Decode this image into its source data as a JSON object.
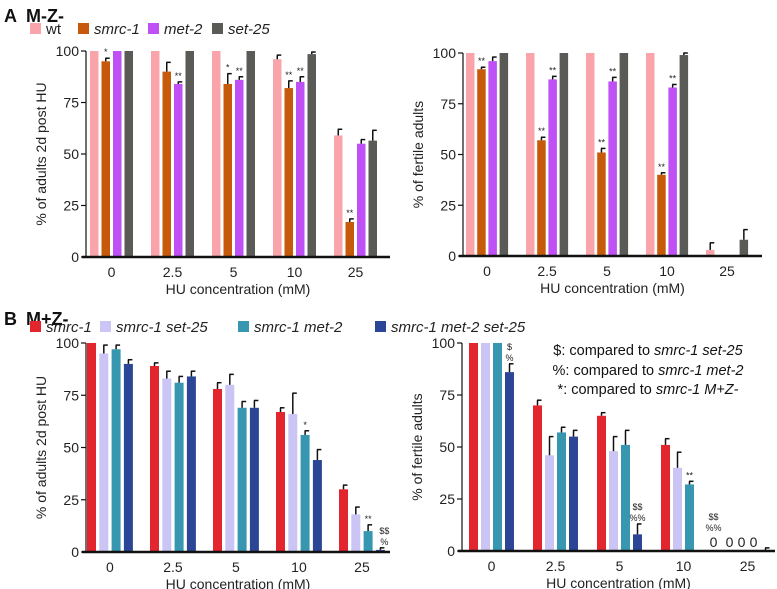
{
  "panels": [
    {
      "letter": "A",
      "title": "M-Z-"
    },
    {
      "letter": "B",
      "title": "M+Z-"
    }
  ],
  "legends": [
    [
      {
        "label": "wt",
        "color": "#f9a4aa",
        "italic": false
      },
      {
        "label": "smrc-1",
        "color": "#c65a0a",
        "italic": true
      },
      {
        "label": "met-2",
        "color": "#bf50f6",
        "italic": true
      },
      {
        "label": "set-25",
        "color": "#5a5b56",
        "italic": true
      }
    ],
    [
      {
        "label": "smrc-1",
        "color": "#e3252d",
        "italic": true
      },
      {
        "label": "smrc-1 set-25",
        "color": "#cac5f4",
        "italic": true
      },
      {
        "label": "smrc-1 met-2",
        "color": "#3797b0",
        "italic": true
      },
      {
        "label": "smrc-1 met-2 set-25",
        "color": "#2b4696",
        "italic": true
      }
    ]
  ],
  "notes": [
    {
      "prefix": "$: compared to ",
      "italic": "smrc-1 set-25"
    },
    {
      "prefix": "%: compared to ",
      "italic": "smrc-1 met-2"
    },
    {
      "prefix": "*: compared to ",
      "italic": "smrc-1 M+Z-"
    }
  ],
  "chart_data": [
    {
      "type": "bar",
      "panel": "A",
      "ylabel": "% of adults 2d post HU",
      "xlabel": "HU concentration (mM)",
      "ylim": [
        0,
        100
      ],
      "yticks": [
        "0",
        "25",
        "50",
        "75",
        "100"
      ],
      "categories": [
        "0",
        "2.5",
        "5",
        "10",
        "25"
      ],
      "legend": 0,
      "series": [
        {
          "name": "wt",
          "values": [
            100,
            100,
            100,
            96,
            59
          ],
          "errors": [
            0,
            0,
            0,
            2,
            3
          ],
          "sig": [
            "",
            "",
            "",
            "",
            ""
          ]
        },
        {
          "name": "smrc-1",
          "values": [
            95,
            90,
            84,
            82,
            17
          ],
          "errors": [
            1.5,
            4.5,
            5,
            3.5,
            1.5
          ],
          "sig": [
            "*",
            "",
            "*",
            "**",
            "**"
          ]
        },
        {
          "name": "met-2",
          "values": [
            100,
            84,
            86,
            85,
            55
          ],
          "errors": [
            0,
            1,
            1.5,
            2.5,
            2
          ],
          "sig": [
            "",
            "**",
            "**",
            "**",
            ""
          ]
        },
        {
          "name": "set-25",
          "values": [
            100,
            100,
            100,
            98.5,
            56.5
          ],
          "errors": [
            0,
            0,
            0,
            1,
            5
          ],
          "sig": [
            "",
            "",
            "",
            "",
            ""
          ]
        }
      ]
    },
    {
      "type": "bar",
      "panel": "A",
      "ylabel": "% of fertile adults",
      "xlabel": "HU concentration (mM)",
      "ylim": [
        0,
        100
      ],
      "yticks": [
        "0",
        "25",
        "50",
        "75",
        "100"
      ],
      "categories": [
        "0",
        "2.5",
        "5",
        "10",
        "25"
      ],
      "legend": 0,
      "series": [
        {
          "name": "wt",
          "values": [
            100,
            100,
            100,
            100,
            3
          ],
          "errors": [
            0,
            0,
            0,
            0,
            3.5
          ],
          "sig": [
            "",
            "",
            "",
            "",
            ""
          ]
        },
        {
          "name": "smrc-1",
          "values": [
            92,
            57,
            51,
            40,
            0
          ],
          "errors": [
            1,
            1.5,
            2,
            1,
            0
          ],
          "sig": [
            "**",
            "**",
            "**",
            "**",
            ""
          ]
        },
        {
          "name": "met-2",
          "values": [
            96,
            87,
            86,
            83,
            0
          ],
          "errors": [
            2,
            1.5,
            2,
            1.5,
            0
          ],
          "sig": [
            "",
            "**",
            "**",
            "**",
            ""
          ]
        },
        {
          "name": "set-25",
          "values": [
            100,
            100,
            100,
            99,
            8
          ],
          "errors": [
            0,
            0,
            0,
            1,
            5
          ],
          "sig": [
            "",
            "",
            "",
            "",
            ""
          ]
        }
      ]
    },
    {
      "type": "bar",
      "panel": "B",
      "ylabel": "% of adults 2d post HU",
      "xlabel": "HU concentration (mM)",
      "ylim": [
        0,
        100
      ],
      "yticks": [
        "0",
        "25",
        "50",
        "75",
        "100"
      ],
      "categories": [
        "0",
        "2.5",
        "5",
        "10",
        "25"
      ],
      "legend": 1,
      "series": [
        {
          "name": "smrc-1",
          "values": [
            100,
            89,
            78,
            67,
            30
          ],
          "errors": [
            0,
            1.5,
            3,
            2,
            2
          ],
          "sig": [
            "",
            "",
            "",
            "",
            ""
          ]
        },
        {
          "name": "smrc-1 set-25",
          "values": [
            95,
            83,
            80,
            66,
            18
          ],
          "errors": [
            4,
            3.5,
            5,
            10,
            3.5
          ],
          "sig": [
            "",
            "",
            "",
            "",
            ""
          ]
        },
        {
          "name": "smrc-1 met-2",
          "values": [
            97,
            81,
            69,
            56,
            10
          ],
          "errors": [
            2,
            3,
            3,
            2,
            3
          ],
          "sig": [
            "",
            "",
            "",
            "*",
            "**"
          ]
        },
        {
          "name": "smrc-1 met-2 set-25",
          "values": [
            90,
            84,
            69,
            44,
            1
          ],
          "errors": [
            2,
            2.5,
            3.5,
            5,
            1
          ],
          "sig": [
            "",
            "",
            "",
            "",
            "$$ %"
          ]
        }
      ]
    },
    {
      "type": "bar",
      "panel": "B",
      "ylabel": "% of fertile adults",
      "xlabel": "HU concentration (mM)",
      "ylim": [
        0,
        100
      ],
      "yticks": [
        "0",
        "25",
        "50",
        "75",
        "100"
      ],
      "categories": [
        "0",
        "2.5",
        "5",
        "10",
        "25"
      ],
      "legend": 1,
      "series": [
        {
          "name": "smrc-1",
          "values": [
            100,
            70,
            65,
            51,
            0
          ],
          "errors": [
            0,
            2.5,
            1.5,
            3,
            0
          ],
          "sig": [
            "",
            "",
            "",
            "",
            "0"
          ]
        },
        {
          "name": "smrc-1 set-25",
          "values": [
            100,
            46,
            48,
            40,
            0
          ],
          "errors": [
            0,
            9,
            7,
            7.5,
            0
          ],
          "sig": [
            "",
            "",
            "",
            "",
            "0"
          ]
        },
        {
          "name": "smrc-1 met-2",
          "values": [
            100,
            57,
            51,
            32,
            0
          ],
          "errors": [
            0,
            2.5,
            7,
            1.5,
            0
          ],
          "sig": [
            "",
            "",
            "",
            "**",
            "0"
          ]
        },
        {
          "name": "smrc-1 met-2 set-25",
          "values": [
            86,
            55,
            8,
            0,
            0.5
          ],
          "errors": [
            4,
            3,
            5,
            0,
            1
          ],
          "sig": [
            "$ %",
            "",
            "$$ %%",
            "$$ %% 0",
            ""
          ]
        }
      ]
    }
  ]
}
